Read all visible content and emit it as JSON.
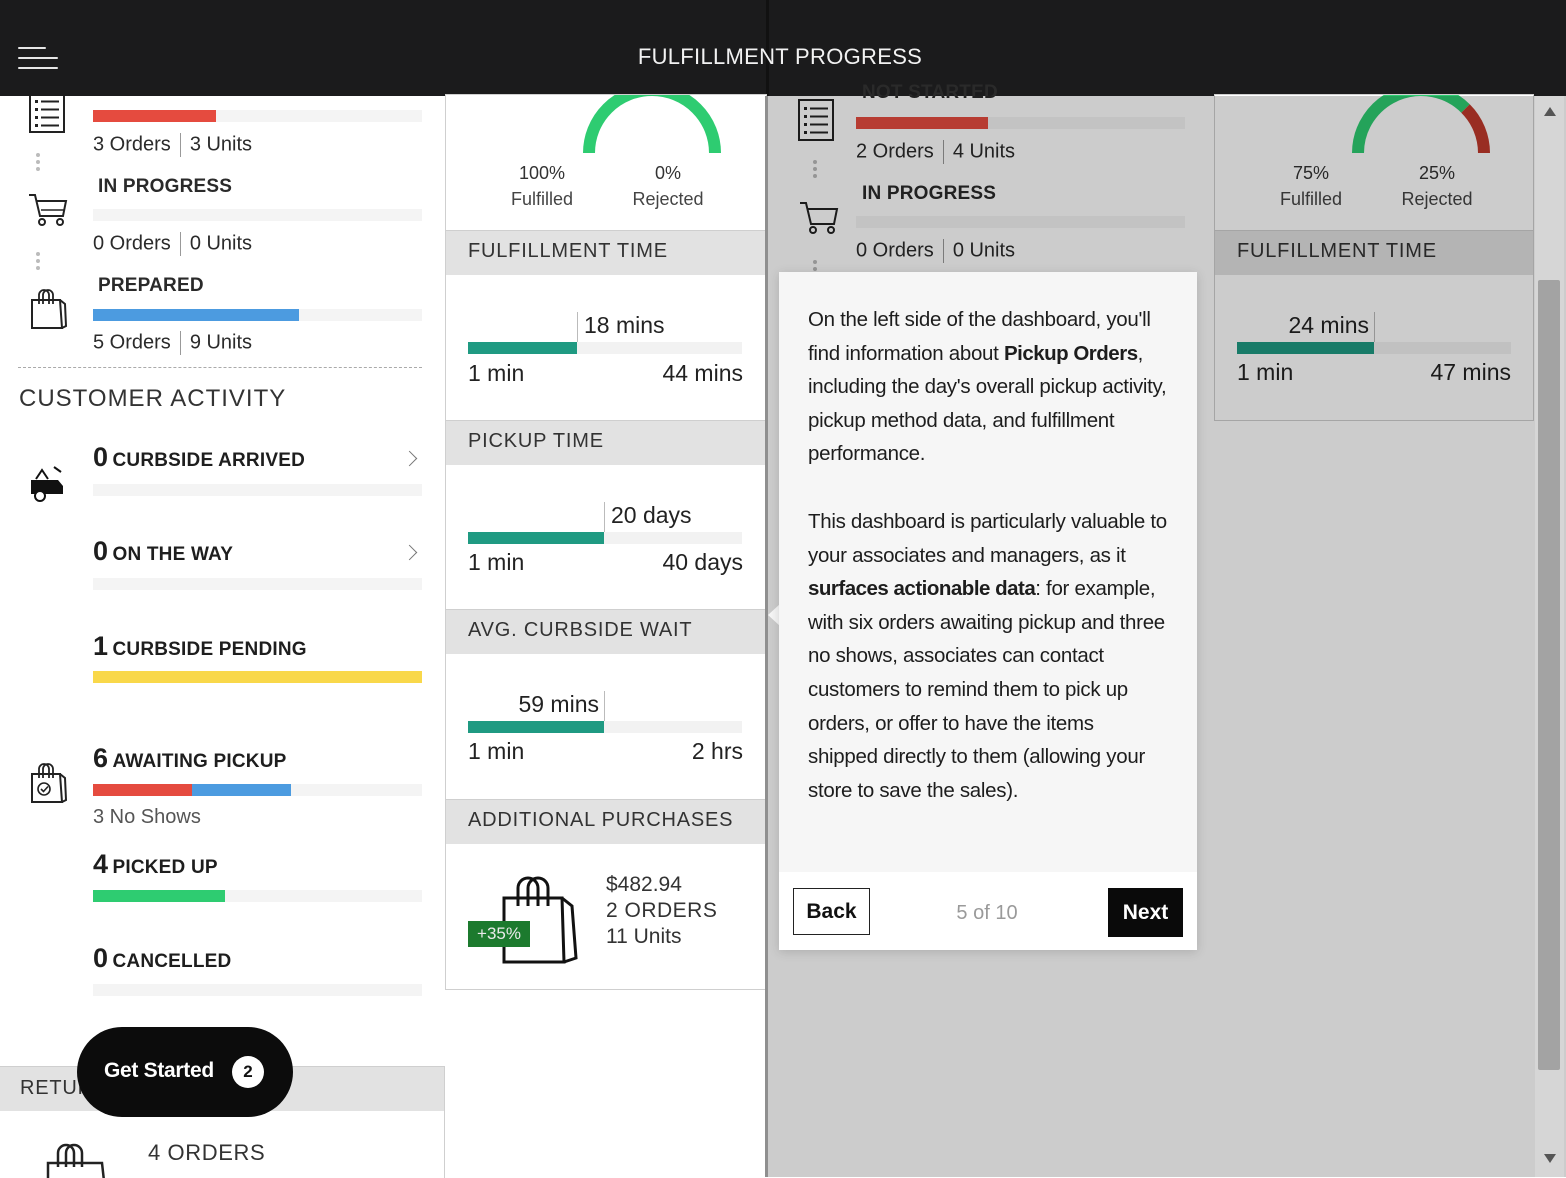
{
  "header": {
    "title": "FULFILLMENT PROGRESS",
    "menu_icon": "hamburger-menu-icon"
  },
  "colors": {
    "not_started": "#e54b3f",
    "prepared": "#4c9be0",
    "pending": "#f9d84a",
    "picked_up": "#2ecc71",
    "progress": "#1f9a82",
    "gauge_green": "#2ecc71",
    "gauge_red": "#c0392b"
  },
  "pipeline": {
    "not_started": {
      "orders": "3 Orders",
      "units": "3 Units",
      "fraction": 0.38,
      "icon": "checklist-icon"
    },
    "in_progress": {
      "label": "IN PROGRESS",
      "orders": "0 Orders",
      "units": "0 Units",
      "fraction": 0,
      "icon": "cart-icon"
    },
    "prepared": {
      "label": "PREPARED",
      "orders": "5 Orders",
      "units": "9 Units",
      "fraction": 0.63,
      "icon": "bag-icon"
    }
  },
  "customer_activity": {
    "title": "CUSTOMER ACTIVITY",
    "curbside_arrived": {
      "count": "0",
      "label": "CURBSIDE ARRIVED",
      "icon": "car-icon"
    },
    "on_the_way": {
      "count": "0",
      "label": "ON THE WAY"
    },
    "curbside_pending": {
      "count": "1",
      "label": "CURBSIDE PENDING",
      "fraction": 1.0
    },
    "awaiting_pickup": {
      "count": "6",
      "label": "AWAITING PICKUP",
      "sub": "3 No Shows",
      "red_fraction": 0.3,
      "blue_fraction": 0.3,
      "icon": "bag-check-icon"
    },
    "picked_up": {
      "count": "4",
      "label": "PICKED UP",
      "fraction": 0.4
    },
    "cancelled": {
      "count": "0",
      "label": "CANCELLED",
      "fraction": 0
    }
  },
  "returns": {
    "label_partial": "RETUR",
    "orders": "4 ORDERS",
    "icon": "bag-icon"
  },
  "middle": {
    "gauge": {
      "fulfilled_pct": "100%",
      "fulfilled_label": "Fulfilled",
      "rejected_pct": "0%",
      "rejected_label": "Rejected",
      "fulfilled_fraction": 1.0
    },
    "fulfillment_time": {
      "title": "FULFILLMENT TIME",
      "value": "18 mins",
      "min": "1 min",
      "max": "44 mins",
      "fraction": 0.39
    },
    "pickup_time": {
      "title": "PICKUP TIME",
      "value": "20 days",
      "min": "1 min",
      "max": "40 days",
      "fraction": 0.5
    },
    "avg_curbside_wait": {
      "title": "AVG. CURBSIDE WAIT",
      "value": "59 mins",
      "min": "1 min",
      "max": "2 hrs",
      "fraction": 0.5
    },
    "additional_purchases": {
      "title": "ADDITIONAL PURCHASES",
      "badge": "+35%",
      "amount": "$482.94",
      "orders": "2 ORDERS",
      "units": "11 Units"
    }
  },
  "right_panel": {
    "not_started_label": "NOT STARTED",
    "not_started": {
      "orders": "2 Orders",
      "units": "4 Units",
      "fraction": 0.4
    },
    "in_progress": {
      "label": "IN PROGRESS",
      "orders": "0 Orders",
      "units": "0 Units"
    },
    "gauge": {
      "fulfilled_pct": "75%",
      "fulfilled_label": "Fulfilled",
      "rejected_pct": "25%",
      "rejected_label": "Rejected",
      "fulfilled_fraction": 0.75
    },
    "fulfillment_time": {
      "title": "FULFILLMENT TIME",
      "value": "24 mins",
      "min": "1 min",
      "max": "47 mins",
      "fraction": 0.5
    }
  },
  "tour": {
    "p1_a": "On the left side of the dashboard, you'll find information about ",
    "p1_b": "Pickup Orders",
    "p1_c": ", including the day's overall pickup activity, pickup method data, and fulfillment performance.",
    "p2_a": "This dashboard is particularly valuable to your associates and managers, as it ",
    "p2_b": "surfaces actionable data",
    "p2_c": ": for example, with six orders awaiting pickup and three no shows, associates can contact customers to remind them to pick up orders, or offer to have the items shipped directly to them (allowing your store to save the sales).",
    "back": "Back",
    "step": "5 of 10",
    "next": "Next"
  },
  "get_started": {
    "label": "Get Started",
    "badge": "2"
  }
}
